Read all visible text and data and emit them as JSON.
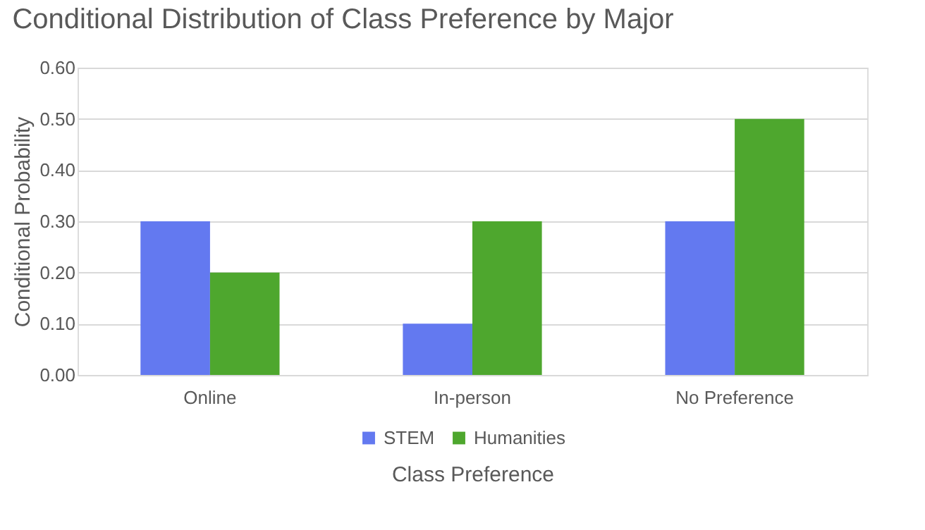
{
  "chart_data": {
    "type": "bar",
    "title": "Conditional Distribution of Class Preference by Major",
    "xlabel": "Class Preference",
    "ylabel": "Conditional Probability",
    "categories": [
      "Online",
      "In-person",
      "No Preference"
    ],
    "series": [
      {
        "name": "STEM",
        "color": "#6379f0",
        "values": [
          0.3,
          0.1,
          0.3
        ]
      },
      {
        "name": "Humanities",
        "color": "#4ea72e",
        "values": [
          0.2,
          0.3,
          0.5
        ]
      }
    ],
    "ylim": [
      0,
      0.6
    ],
    "yticks": [
      {
        "value": 0,
        "label": "0.00"
      },
      {
        "value": 0.1,
        "label": "0.10"
      },
      {
        "value": 0.2,
        "label": "0.20"
      },
      {
        "value": 0.3,
        "label": "0.30"
      },
      {
        "value": 0.4,
        "label": "0.40"
      },
      {
        "value": 0.5,
        "label": "0.50"
      },
      {
        "value": 0.6,
        "label": "0.60"
      }
    ],
    "grid": "y",
    "legend": "bottom"
  }
}
